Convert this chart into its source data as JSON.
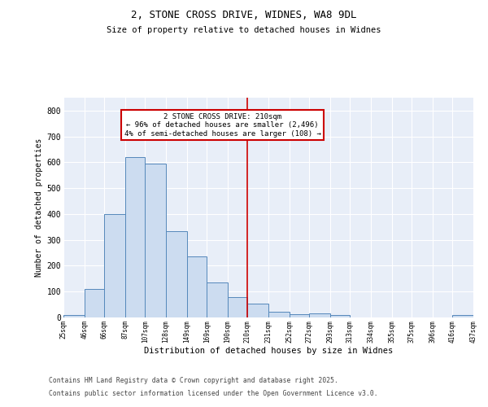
{
  "title1": "2, STONE CROSS DRIVE, WIDNES, WA8 9DL",
  "title2": "Size of property relative to detached houses in Widnes",
  "xlabel": "Distribution of detached houses by size in Widnes",
  "ylabel": "Number of detached properties",
  "bar_edges": [
    25,
    46,
    66,
    87,
    107,
    128,
    149,
    169,
    190,
    210,
    231,
    252,
    272,
    293,
    313,
    334,
    355,
    375,
    396,
    416,
    437
  ],
  "bar_heights": [
    8,
    110,
    400,
    620,
    595,
    333,
    235,
    135,
    78,
    52,
    22,
    13,
    15,
    8,
    0,
    0,
    0,
    0,
    0,
    8
  ],
  "bar_color": "#ccdcf0",
  "bar_edge_color": "#5588bb",
  "vline_x": 210,
  "vline_color": "#cc0000",
  "annotation_text": "2 STONE CROSS DRIVE: 210sqm\n← 96% of detached houses are smaller (2,496)\n4% of semi-detached houses are larger (108) →",
  "annotation_box_color": "#cc0000",
  "ylim": [
    0,
    850
  ],
  "yticks": [
    0,
    100,
    200,
    300,
    400,
    500,
    600,
    700,
    800
  ],
  "tick_labels": [
    "25sqm",
    "46sqm",
    "66sqm",
    "87sqm",
    "107sqm",
    "128sqm",
    "149sqm",
    "169sqm",
    "190sqm",
    "210sqm",
    "231sqm",
    "252sqm",
    "272sqm",
    "293sqm",
    "313sqm",
    "334sqm",
    "355sqm",
    "375sqm",
    "396sqm",
    "416sqm",
    "437sqm"
  ],
  "footnote1": "Contains HM Land Registry data © Crown copyright and database right 2025.",
  "footnote2": "Contains public sector information licensed under the Open Government Licence v3.0.",
  "background_color": "#e8eef8",
  "grid_color": "#ffffff",
  "fig_background": "#ffffff"
}
